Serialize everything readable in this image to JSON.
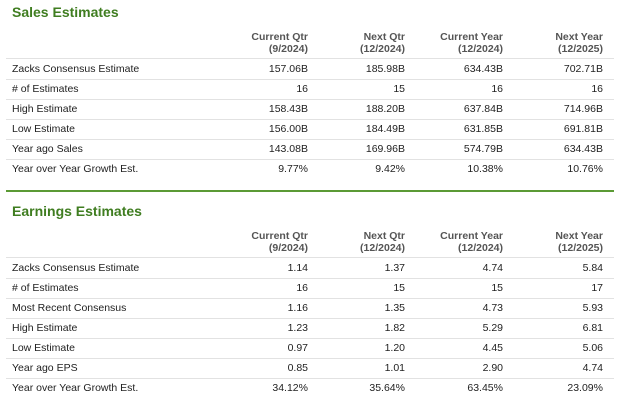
{
  "sections": [
    {
      "title": "Sales Estimates",
      "columns": [
        [
          "Current Qtr",
          "(9/2024)"
        ],
        [
          "Next Qtr",
          "(12/2024)"
        ],
        [
          "Current Year",
          "(12/2024)"
        ],
        [
          "Next Year",
          "(12/2025)"
        ]
      ],
      "rows": [
        [
          "Zacks Consensus Estimate",
          "157.06B",
          "185.98B",
          "634.43B",
          "702.71B"
        ],
        [
          "# of Estimates",
          "16",
          "15",
          "16",
          "16"
        ],
        [
          "High Estimate",
          "158.43B",
          "188.20B",
          "637.84B",
          "714.96B"
        ],
        [
          "Low Estimate",
          "156.00B",
          "184.49B",
          "631.85B",
          "691.81B"
        ],
        [
          "Year ago Sales",
          "143.08B",
          "169.96B",
          "574.79B",
          "634.43B"
        ],
        [
          "Year over Year Growth Est.",
          "9.77%",
          "9.42%",
          "10.38%",
          "10.76%"
        ]
      ]
    },
    {
      "title": "Earnings Estimates",
      "columns": [
        [
          "Current Qtr",
          "(9/2024)"
        ],
        [
          "Next Qtr",
          "(12/2024)"
        ],
        [
          "Current Year",
          "(12/2024)"
        ],
        [
          "Next Year",
          "(12/2025)"
        ]
      ],
      "rows": [
        [
          "Zacks Consensus Estimate",
          "1.14",
          "1.37",
          "4.74",
          "5.84"
        ],
        [
          "# of Estimates",
          "16",
          "15",
          "15",
          "17"
        ],
        [
          "Most Recent Consensus",
          "1.16",
          "1.35",
          "4.73",
          "5.93"
        ],
        [
          "High Estimate",
          "1.23",
          "1.82",
          "5.29",
          "6.81"
        ],
        [
          "Low Estimate",
          "0.97",
          "1.20",
          "4.45",
          "5.06"
        ],
        [
          "Year ago EPS",
          "0.85",
          "1.01",
          "2.90",
          "4.74"
        ],
        [
          "Year over Year Growth Est.",
          "34.12%",
          "35.64%",
          "63.45%",
          "23.09%"
        ]
      ]
    }
  ]
}
